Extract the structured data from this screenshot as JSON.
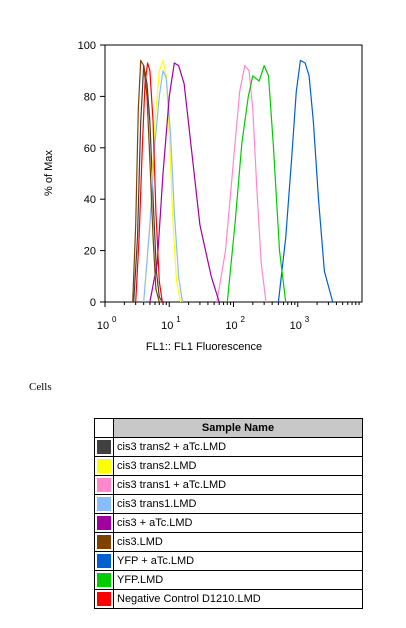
{
  "chart_data": {
    "type": "line",
    "xlabel": "FL1:: FL1 Fluorescence",
    "ylabel": "% of Max",
    "x_scale": "log",
    "xlim": [
      1,
      10000
    ],
    "ylim": [
      0,
      100
    ],
    "y_ticks": [
      "0",
      "20",
      "40",
      "60",
      "80",
      "100"
    ],
    "x_ticks": [
      {
        "base": "10",
        "exp": "0"
      },
      {
        "base": "10",
        "exp": "1"
      },
      {
        "base": "10",
        "exp": "2"
      },
      {
        "base": "10",
        "exp": "3"
      }
    ],
    "series": [
      {
        "name": "cis3 trans2 + aTc.LMD",
        "color": "#404040",
        "x": [
          2.8,
          3.2,
          3.6,
          4.0,
          4.5,
          5.0,
          5.6,
          6.3,
          7.0,
          7.8
        ],
        "y": [
          0,
          25,
          70,
          92,
          85,
          70,
          40,
          12,
          2,
          0
        ]
      },
      {
        "name": "cis3 trans2.LMD",
        "color": "#ffff00",
        "x": [
          4.0,
          5.0,
          6.0,
          7.0,
          8.0,
          9.0,
          10.0,
          11.5,
          13.0,
          15.0
        ],
        "y": [
          0,
          30,
          70,
          90,
          94,
          88,
          65,
          30,
          8,
          0
        ]
      },
      {
        "name": "cis3 trans1 + aTc.LMD",
        "color": "#ff88cc",
        "x": [
          55,
          75,
          100,
          125,
          150,
          175,
          200,
          230,
          270,
          320
        ],
        "y": [
          0,
          20,
          55,
          82,
          92,
          90,
          75,
          45,
          15,
          0
        ]
      },
      {
        "name": "cis3 trans1.LMD",
        "color": "#88bbff",
        "x": [
          4.0,
          5.0,
          6.0,
          7.0,
          8.0,
          9.0,
          10.5,
          12.0,
          14.0,
          16.0
        ],
        "y": [
          0,
          30,
          62,
          80,
          90,
          87,
          65,
          35,
          10,
          0
        ]
      },
      {
        "name": "cis3 + aTc.LMD",
        "color": "#a000a0",
        "x": [
          5.0,
          6.5,
          8.0,
          10.0,
          12.0,
          14.0,
          17.0,
          22.0,
          30.0,
          45.0,
          60.0
        ],
        "y": [
          0,
          15,
          50,
          80,
          93,
          92,
          85,
          60,
          30,
          10,
          0
        ]
      },
      {
        "name": "cis3.LMD",
        "color": "#804000",
        "x": [
          2.7,
          3.0,
          3.3,
          3.6,
          4.0,
          4.5,
          5.0,
          5.6,
          6.2,
          7.0
        ],
        "y": [
          0,
          30,
          75,
          94,
          92,
          80,
          55,
          25,
          5,
          0
        ]
      },
      {
        "name": "YFP + aTc.LMD",
        "color": "#0060d0",
        "x": [
          500,
          650,
          800,
          950,
          1100,
          1300,
          1500,
          1750,
          2100,
          2600,
          3500
        ],
        "y": [
          0,
          25,
          55,
          82,
          94,
          93,
          88,
          70,
          40,
          12,
          0
        ]
      },
      {
        "name": "YFP.LMD",
        "color": "#00cc00",
        "x": [
          80,
          105,
          135,
          170,
          200,
          250,
          300,
          350,
          420,
          520,
          650
        ],
        "y": [
          0,
          30,
          62,
          80,
          88,
          86,
          92,
          88,
          60,
          20,
          0
        ]
      },
      {
        "name": "Negative Control D1210.LMD",
        "color": "#ff0000",
        "x": [
          3.0,
          3.4,
          3.8,
          4.2,
          4.6,
          5.0,
          5.6,
          6.2,
          7.0,
          7.8
        ],
        "y": [
          0,
          25,
          60,
          85,
          93,
          90,
          70,
          35,
          8,
          0
        ]
      }
    ]
  },
  "section_label": "Cells",
  "legend_table": {
    "header": "Sample Name"
  }
}
